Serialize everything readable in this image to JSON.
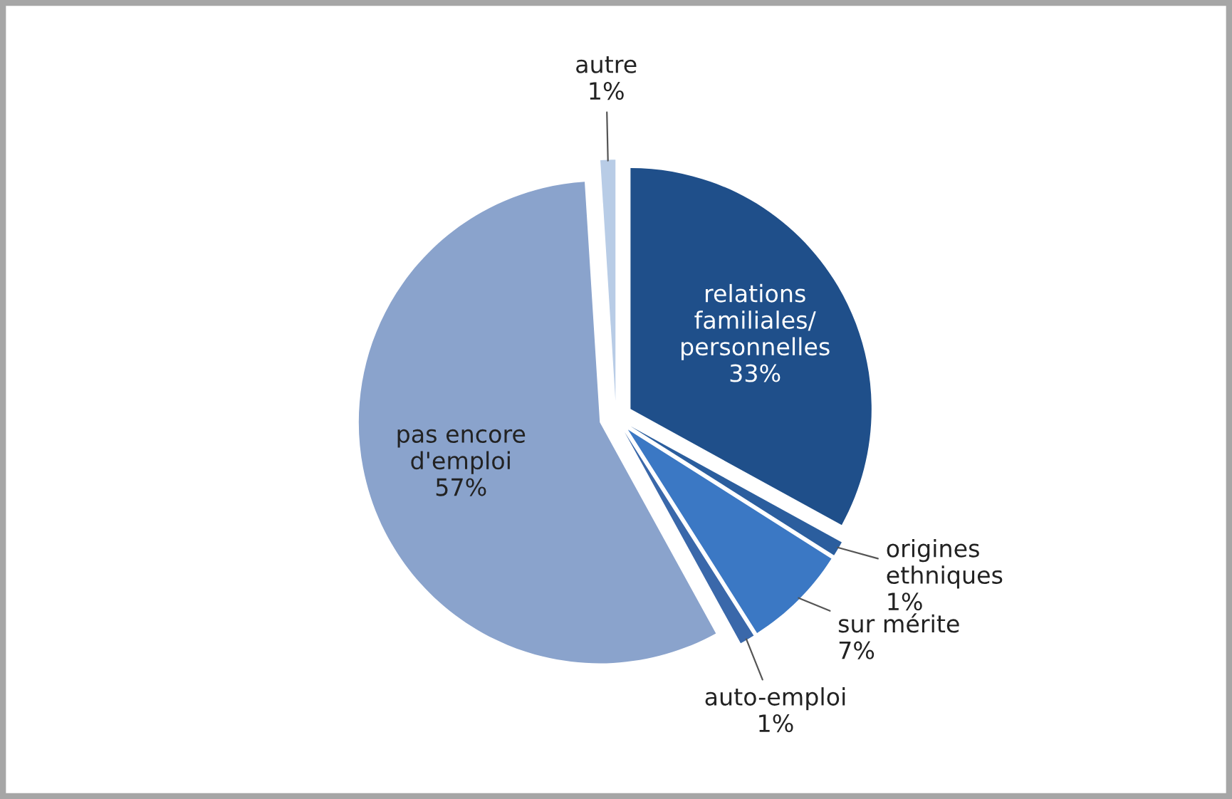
{
  "chart_data": {
    "type": "pie",
    "categories": [
      "relations\nfamiliales/\npersonnelles",
      "origines\nethniques",
      "sur mérite",
      "auto-emploi",
      "pas encore\nd'emploi",
      "autre"
    ],
    "values": [
      33,
      1,
      7,
      1,
      57,
      1
    ],
    "value_labels": [
      "33%",
      "1%",
      "7%",
      "1%",
      "57%",
      "1%"
    ],
    "colors": [
      "#1f4f8a",
      "#2b5e9e",
      "#3b78c4",
      "#3a68aa",
      "#8aa3cc",
      "#b8cce6"
    ],
    "legend": false
  }
}
